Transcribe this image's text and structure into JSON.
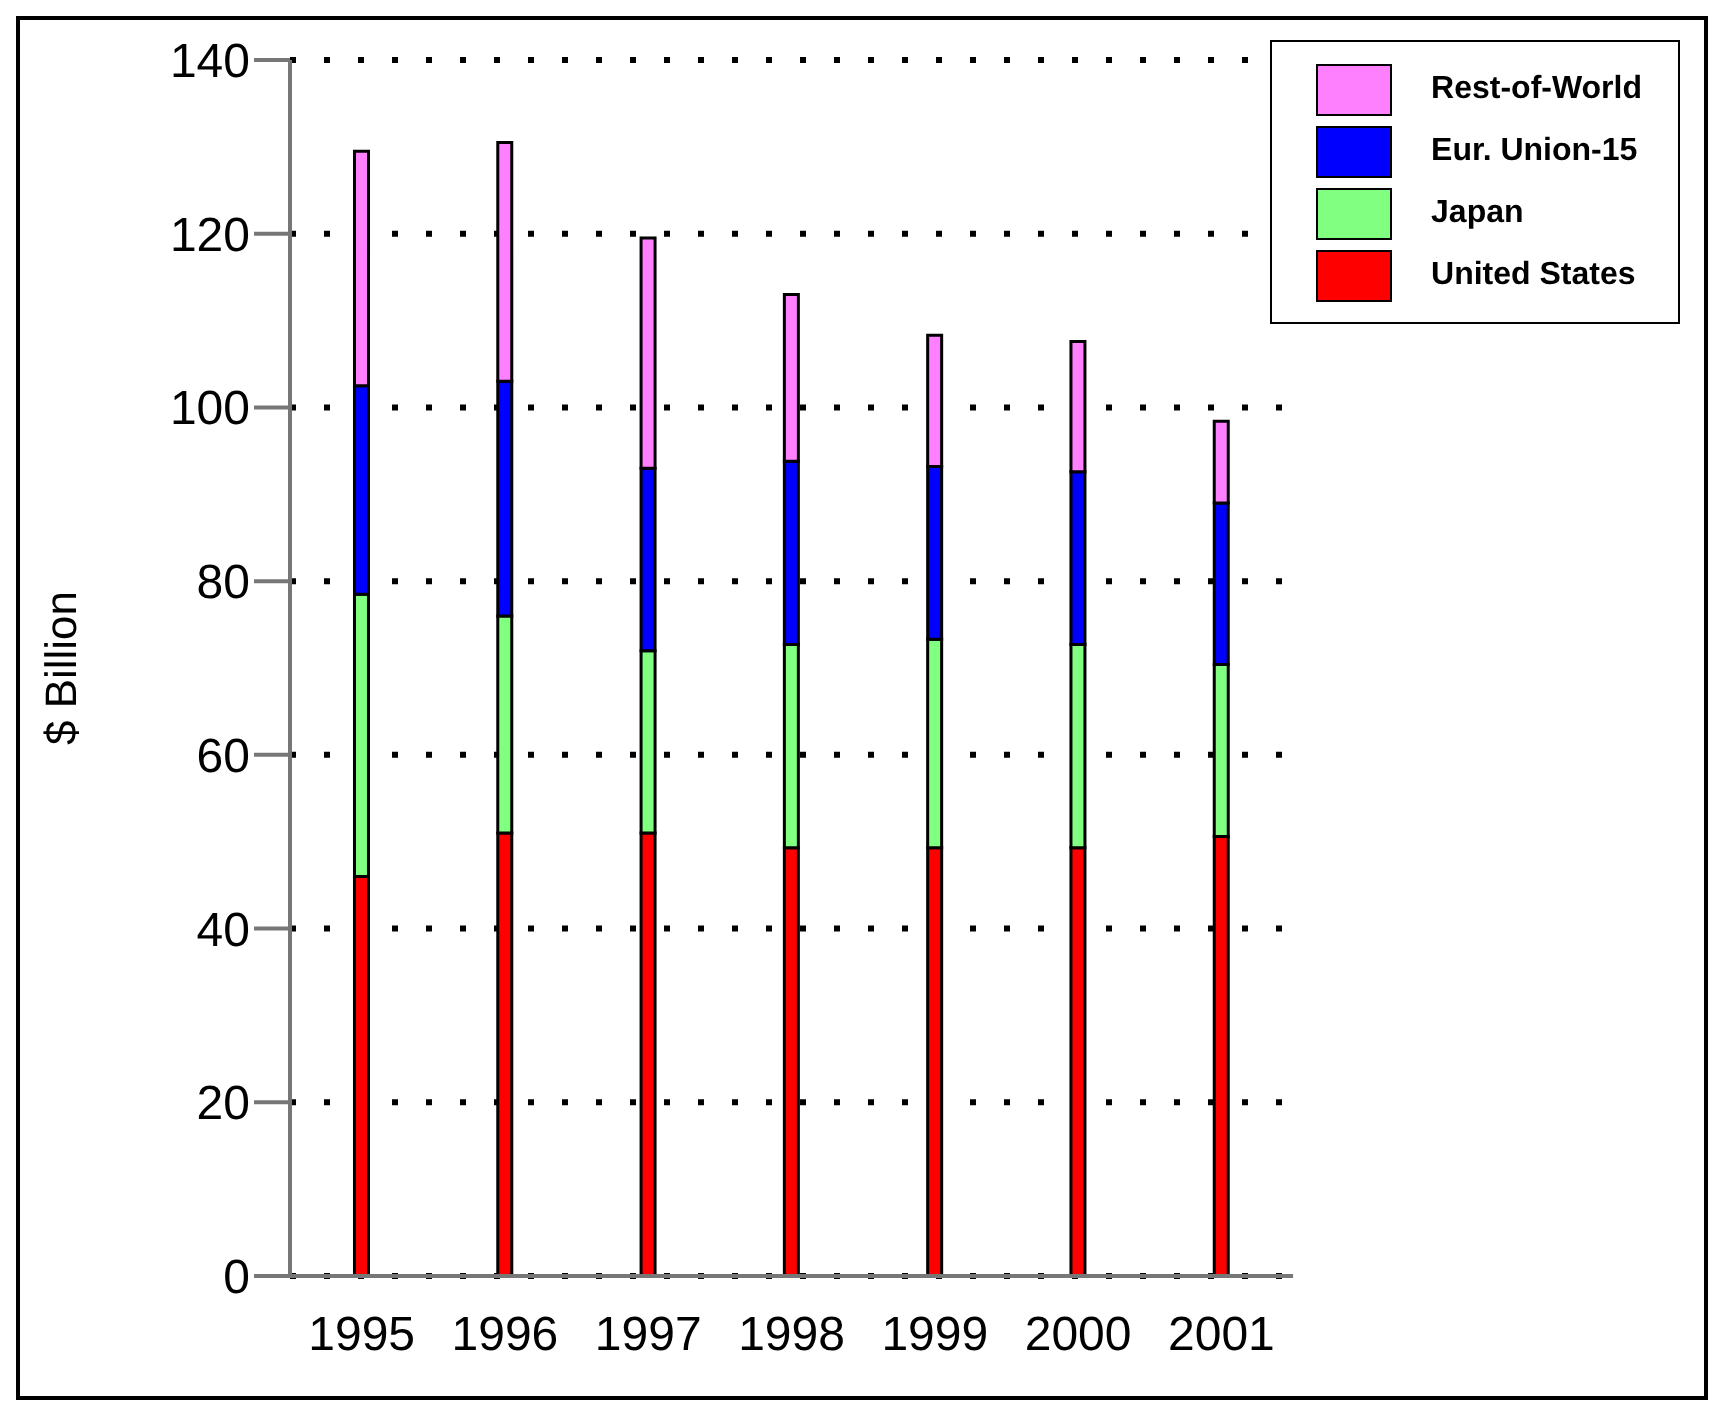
{
  "chart_data": {
    "type": "bar",
    "stacked": true,
    "ylabel": "$ Billion",
    "categories": [
      "1995",
      "1996",
      "1997",
      "1998",
      "1999",
      "2000",
      "2001"
    ],
    "series": [
      {
        "name": "United States",
        "color": "#ff0000",
        "values": [
          46,
          51,
          51,
          49.3,
          49.3,
          49.3,
          50.6
        ]
      },
      {
        "name": "Japan",
        "color": "#80ff80",
        "values": [
          32.5,
          25,
          21,
          23.4,
          24,
          23.4,
          19.8
        ]
      },
      {
        "name": "Eur. Union-15",
        "color": "#0000ff",
        "values": [
          24,
          27,
          21,
          21.1,
          19.9,
          19.9,
          18.6
        ]
      },
      {
        "name": "Rest-of-World",
        "color": "#ff80ff",
        "values": [
          27,
          27.5,
          26.5,
          19.2,
          15.1,
          15,
          9.4
        ]
      }
    ],
    "ylim": [
      0,
      140
    ],
    "yticks": [
      0,
      20,
      40,
      60,
      80,
      100,
      120,
      140
    ],
    "grid": "y",
    "legend": "top right"
  }
}
